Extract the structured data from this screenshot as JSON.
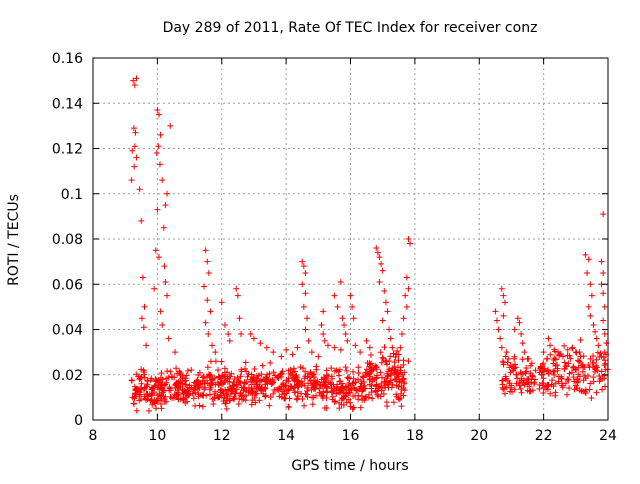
{
  "chart_data": {
    "type": "scatter",
    "title": "Day 289 of 2011, Rate Of TEC Index for receiver conz",
    "xlabel": "GPS time / hours",
    "ylabel": "ROTI / TECUs",
    "xlim": [
      8,
      24
    ],
    "ylim": [
      0,
      0.16
    ],
    "x_ticks": [
      8,
      10,
      12,
      14,
      16,
      18,
      20,
      22,
      24
    ],
    "x_tick_labels": [
      "8",
      "10",
      "12",
      "14",
      "16",
      "18",
      "20",
      "22",
      "24"
    ],
    "y_ticks": [
      0,
      0.02,
      0.04,
      0.06,
      0.08,
      0.1,
      0.12,
      0.14,
      0.16
    ],
    "y_tick_labels": [
      "0",
      "0.02",
      "0.04",
      "0.06",
      "0.08",
      "0.1",
      "0.12",
      "0.14",
      "0.16"
    ],
    "grid": true,
    "marker": "plus",
    "color": "#ff0000",
    "series": [
      {
        "name": "ROTI",
        "points": [
          [
            9.25,
            0.15
          ],
          [
            9.3,
            0.148
          ],
          [
            9.35,
            0.151
          ],
          [
            9.27,
            0.129
          ],
          [
            9.32,
            0.127
          ],
          [
            9.3,
            0.121
          ],
          [
            9.22,
            0.119
          ],
          [
            9.35,
            0.116
          ],
          [
            9.28,
            0.112
          ],
          [
            9.2,
            0.106
          ],
          [
            9.45,
            0.102
          ],
          [
            9.5,
            0.088
          ],
          [
            9.55,
            0.063
          ],
          [
            9.6,
            0.05
          ],
          [
            9.52,
            0.045
          ],
          [
            9.58,
            0.041
          ],
          [
            9.65,
            0.033
          ],
          [
            10.0,
            0.137
          ],
          [
            10.05,
            0.135
          ],
          [
            10.1,
            0.126
          ],
          [
            10.03,
            0.121
          ],
          [
            9.98,
            0.118
          ],
          [
            10.08,
            0.113
          ],
          [
            10.4,
            0.13
          ],
          [
            10.15,
            0.106
          ],
          [
            10.3,
            0.1
          ],
          [
            10.25,
            0.095
          ],
          [
            10.0,
            0.093
          ],
          [
            9.95,
            0.075
          ],
          [
            10.05,
            0.072
          ],
          [
            10.2,
            0.085
          ],
          [
            10.22,
            0.068
          ],
          [
            10.25,
            0.061
          ],
          [
            10.3,
            0.055
          ],
          [
            10.1,
            0.048
          ],
          [
            10.15,
            0.042
          ],
          [
            9.9,
            0.058
          ],
          [
            10.35,
            0.036
          ],
          [
            10.55,
            0.03
          ],
          [
            11.5,
            0.075
          ],
          [
            11.55,
            0.07
          ],
          [
            11.6,
            0.065
          ],
          [
            11.45,
            0.059
          ],
          [
            11.55,
            0.053
          ],
          [
            11.65,
            0.048
          ],
          [
            11.5,
            0.043
          ],
          [
            11.58,
            0.038
          ],
          [
            11.7,
            0.033
          ],
          [
            11.8,
            0.03
          ],
          [
            12.0,
            0.052
          ],
          [
            12.1,
            0.042
          ],
          [
            12.2,
            0.038
          ],
          [
            12.25,
            0.035
          ],
          [
            12.45,
            0.058
          ],
          [
            12.5,
            0.055
          ],
          [
            12.55,
            0.045
          ],
          [
            12.6,
            0.038
          ],
          [
            12.9,
            0.038
          ],
          [
            13.0,
            0.036
          ],
          [
            13.2,
            0.034
          ],
          [
            13.4,
            0.032
          ],
          [
            13.6,
            0.03
          ],
          [
            13.85,
            0.028
          ],
          [
            14.0,
            0.031
          ],
          [
            14.2,
            0.029
          ],
          [
            14.35,
            0.032
          ],
          [
            14.5,
            0.07
          ],
          [
            14.55,
            0.068
          ],
          [
            14.6,
            0.065
          ],
          [
            14.5,
            0.06
          ],
          [
            14.6,
            0.056
          ],
          [
            14.55,
            0.05
          ],
          [
            14.65,
            0.045
          ],
          [
            14.6,
            0.04
          ],
          [
            14.7,
            0.035
          ],
          [
            14.8,
            0.03
          ],
          [
            15.0,
            0.028
          ],
          [
            15.1,
            0.042
          ],
          [
            15.15,
            0.038
          ],
          [
            15.2,
            0.035
          ],
          [
            15.15,
            0.048
          ],
          [
            15.3,
            0.033
          ],
          [
            15.5,
            0.032
          ],
          [
            15.7,
            0.031
          ],
          [
            15.5,
            0.055
          ],
          [
            15.6,
            0.05
          ],
          [
            15.7,
            0.061
          ],
          [
            15.75,
            0.045
          ],
          [
            15.8,
            0.042
          ],
          [
            15.85,
            0.038
          ],
          [
            15.9,
            0.035
          ],
          [
            16.0,
            0.055
          ],
          [
            16.05,
            0.05
          ],
          [
            16.1,
            0.045
          ],
          [
            16.15,
            0.033
          ],
          [
            16.3,
            0.03
          ],
          [
            16.5,
            0.035
          ],
          [
            16.6,
            0.032
          ],
          [
            16.8,
            0.076
          ],
          [
            16.85,
            0.074
          ],
          [
            16.9,
            0.072
          ],
          [
            16.95,
            0.069
          ],
          [
            17.0,
            0.066
          ],
          [
            16.9,
            0.061
          ],
          [
            17.05,
            0.057
          ],
          [
            17.1,
            0.052
          ],
          [
            17.15,
            0.048
          ],
          [
            17.0,
            0.044
          ],
          [
            17.2,
            0.04
          ],
          [
            17.25,
            0.036
          ],
          [
            17.3,
            0.032
          ],
          [
            17.8,
            0.08
          ],
          [
            17.85,
            0.078
          ],
          [
            17.75,
            0.063
          ],
          [
            17.8,
            0.058
          ],
          [
            17.7,
            0.055
          ],
          [
            17.75,
            0.05
          ],
          [
            17.65,
            0.045
          ],
          [
            17.6,
            0.038
          ],
          [
            17.55,
            0.032
          ],
          [
            17.5,
            0.029
          ],
          [
            17.8,
            0.026
          ],
          [
            20.5,
            0.048
          ],
          [
            20.55,
            0.044
          ],
          [
            20.6,
            0.04
          ],
          [
            20.65,
            0.036
          ],
          [
            20.7,
            0.032
          ],
          [
            20.7,
            0.058
          ],
          [
            20.75,
            0.055
          ],
          [
            20.8,
            0.052
          ],
          [
            20.75,
            0.046
          ],
          [
            20.85,
            0.03
          ],
          [
            20.9,
            0.027
          ],
          [
            21.1,
            0.04
          ],
          [
            21.2,
            0.045
          ],
          [
            21.25,
            0.043
          ],
          [
            21.3,
            0.038
          ],
          [
            21.35,
            0.034
          ],
          [
            21.4,
            0.03
          ],
          [
            21.5,
            0.027
          ],
          [
            21.6,
            0.024
          ],
          [
            21.75,
            0.022
          ],
          [
            22.0,
            0.03
          ],
          [
            22.1,
            0.027
          ],
          [
            22.2,
            0.033
          ],
          [
            22.15,
            0.036
          ],
          [
            22.3,
            0.025
          ],
          [
            22.45,
            0.03
          ],
          [
            22.6,
            0.028
          ],
          [
            22.75,
            0.031
          ],
          [
            22.9,
            0.032
          ],
          [
            23.0,
            0.03
          ],
          [
            23.3,
            0.073
          ],
          [
            23.4,
            0.071
          ],
          [
            23.35,
            0.065
          ],
          [
            23.45,
            0.06
          ],
          [
            23.5,
            0.055
          ],
          [
            23.4,
            0.05
          ],
          [
            23.45,
            0.046
          ],
          [
            23.55,
            0.042
          ],
          [
            23.6,
            0.039
          ],
          [
            23.65,
            0.036
          ],
          [
            23.7,
            0.033
          ],
          [
            23.8,
            0.07
          ],
          [
            23.85,
            0.065
          ],
          [
            23.8,
            0.06
          ],
          [
            23.85,
            0.056
          ],
          [
            23.9,
            0.05
          ],
          [
            23.85,
            0.044
          ],
          [
            23.9,
            0.038
          ],
          [
            23.95,
            0.034
          ],
          [
            23.9,
            0.03
          ],
          [
            23.85,
            0.091
          ],
          [
            23.8,
            0.028
          ]
        ],
        "bands": [
          {
            "x_range": [
              9.2,
              11.0
            ],
            "center": 0.013,
            "spread": 0.008,
            "count": 200
          },
          {
            "x_range": [
              11.0,
              13.0
            ],
            "center": 0.015,
            "spread": 0.009,
            "count": 200
          },
          {
            "x_range": [
              13.0,
              15.0
            ],
            "center": 0.016,
            "spread": 0.008,
            "count": 190
          },
          {
            "x_range": [
              15.0,
              16.5
            ],
            "center": 0.014,
            "spread": 0.008,
            "count": 150
          },
          {
            "x_range": [
              16.5,
              17.7
            ],
            "center": 0.018,
            "spread": 0.011,
            "count": 140
          },
          {
            "x_range": [
              20.7,
              22.2
            ],
            "center": 0.018,
            "spread": 0.009,
            "count": 110
          },
          {
            "x_range": [
              22.2,
              24.0
            ],
            "center": 0.021,
            "spread": 0.011,
            "count": 130
          }
        ]
      }
    ]
  }
}
